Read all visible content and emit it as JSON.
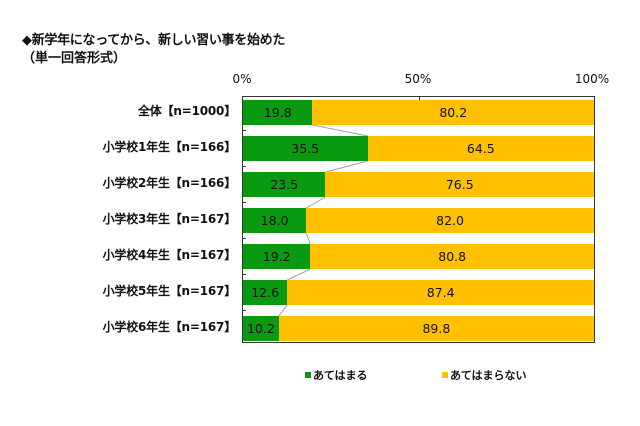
{
  "header": {
    "title": "◆新学年になってから、新しい習い事を始めた",
    "subtitle": "（単一回答形式）"
  },
  "axis": {
    "ticks": [
      "0%",
      "50%",
      "100%"
    ]
  },
  "legend": {
    "items": [
      {
        "label": "あてはまる",
        "color": "#0a9a12"
      },
      {
        "label": "あてはまらない",
        "color": "#ffc000"
      }
    ]
  },
  "rows": [
    {
      "label": "全体【n=1000】",
      "yes": "19.8",
      "no": "80.2"
    },
    {
      "label": "小学校1年生【n=166】",
      "yes": "35.5",
      "no": "64.5"
    },
    {
      "label": "小学校2年生【n=166】",
      "yes": "23.5",
      "no": "76.5"
    },
    {
      "label": "小学校3年生【n=167】",
      "yes": "18.0",
      "no": "82.0"
    },
    {
      "label": "小学校4年生【n=167】",
      "yes": "19.2",
      "no": "80.8"
    },
    {
      "label": "小学校5年生【n=167】",
      "yes": "12.6",
      "no": "87.4"
    },
    {
      "label": "小学校6年生【n=167】",
      "yes": "10.2",
      "no": "89.8"
    }
  ],
  "chart_data": {
    "type": "bar",
    "orientation": "horizontal",
    "stacked": "100%",
    "title": "◆新学年になってから、新しい習い事を始めた",
    "subtitle": "（単一回答形式）",
    "categories": [
      "全体【n=1000】",
      "小学校1年生【n=166】",
      "小学校2年生【n=166】",
      "小学校3年生【n=167】",
      "小学校4年生【n=167】",
      "小学校5年生【n=167】",
      "小学校6年生【n=167】"
    ],
    "series": [
      {
        "name": "あてはまる",
        "color": "#0a9a12",
        "values": [
          19.8,
          35.5,
          23.5,
          18.0,
          19.2,
          12.6,
          10.2
        ]
      },
      {
        "name": "あてはまらない",
        "color": "#ffc000",
        "values": [
          80.2,
          64.5,
          76.5,
          82.0,
          80.8,
          87.4,
          89.8
        ]
      }
    ],
    "xlabel": "",
    "ylabel": "",
    "xlim": [
      0,
      100
    ],
    "xticks": [
      "0%",
      "50%",
      "100%"
    ],
    "grid": false,
    "legend_position": "bottom",
    "series_lines": true
  }
}
